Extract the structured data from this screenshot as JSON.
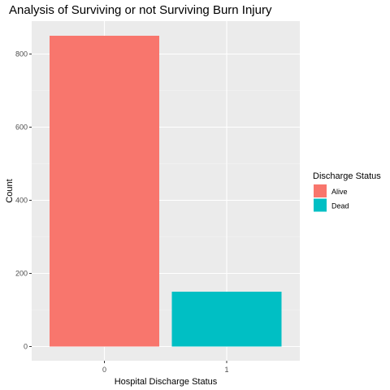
{
  "colors": {
    "panel_background": "#EBEBEB",
    "grid_major": "#FFFFFF",
    "grid_minor": "#F5F5F5",
    "tick_text": "#4D4D4D",
    "alive": "#F8766D",
    "dead": "#00BFC4"
  },
  "chart_data": {
    "type": "bar",
    "title": "Analysis of Surviving or not Surviving Burn Injury",
    "xlabel": "Hospital Discharge Status",
    "ylabel": "Count",
    "categories": [
      "0",
      "1"
    ],
    "values": [
      850,
      150
    ],
    "fill_groups": [
      "Alive",
      "Dead"
    ],
    "ylim": [
      0,
      900
    ],
    "yticks": [
      0,
      200,
      400,
      600,
      800
    ],
    "grid": true,
    "legend": {
      "title": "Discharge Status",
      "position": "right",
      "entries": [
        {
          "label": "Alive",
          "color": "#F8766D"
        },
        {
          "label": "Dead",
          "color": "#00BFC4"
        }
      ]
    }
  }
}
